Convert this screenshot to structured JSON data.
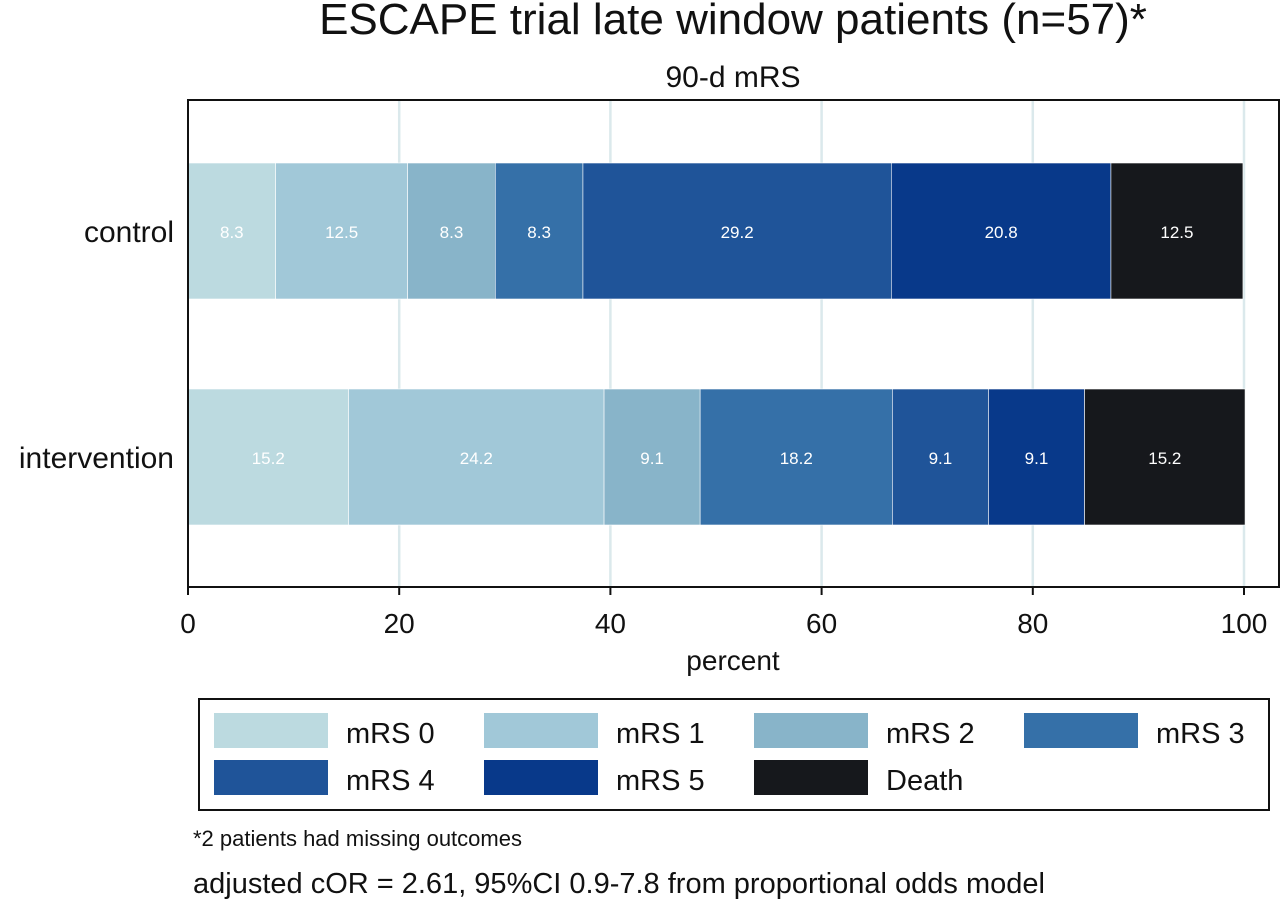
{
  "chart_data": {
    "type": "bar",
    "orientation": "horizontal",
    "stacked": true,
    "title": "ESCAPE trial late window patients (n=57)*",
    "subtitle": "90-d mRS",
    "xlabel": "percent",
    "ylabel": "",
    "xlim": [
      0,
      100
    ],
    "xticks": [
      "0",
      "20",
      "40",
      "60",
      "80",
      "100"
    ],
    "grid": true,
    "legend_position": "bottom",
    "categories": [
      "control",
      "intervention"
    ],
    "series": [
      {
        "name": "mRS 0",
        "color": "#bcdae0",
        "values": [
          8.3,
          15.2
        ],
        "labels": [
          "8.3",
          "15.2"
        ]
      },
      {
        "name": "mRS 1",
        "color": "#a1c8d8",
        "values": [
          12.5,
          24.2
        ],
        "labels": [
          "12.5",
          "24.2"
        ]
      },
      {
        "name": "mRS 2",
        "color": "#88b4c9",
        "values": [
          8.3,
          9.1
        ],
        "labels": [
          "8.3",
          "9.1"
        ]
      },
      {
        "name": "mRS 3",
        "color": "#3570a8",
        "values": [
          8.3,
          18.2
        ],
        "labels": [
          "8.3",
          "18.2"
        ]
      },
      {
        "name": "mRS 4",
        "color": "#1f5499",
        "values": [
          29.2,
          9.1
        ],
        "labels": [
          "29.2",
          "9.1"
        ]
      },
      {
        "name": "mRS 5",
        "color": "#08398a",
        "values": [
          20.8,
          9.1
        ],
        "labels": [
          "20.8",
          "9.1"
        ]
      },
      {
        "name": "Death",
        "color": "#16181c",
        "values": [
          12.5,
          15.2
        ],
        "labels": [
          "12.5",
          "15.2"
        ]
      }
    ],
    "footnotes": [
      "*2 patients had missing outcomes",
      "adjusted cOR = 2.61, 95%CI 0.9-7.8 from proportional odds model"
    ]
  }
}
